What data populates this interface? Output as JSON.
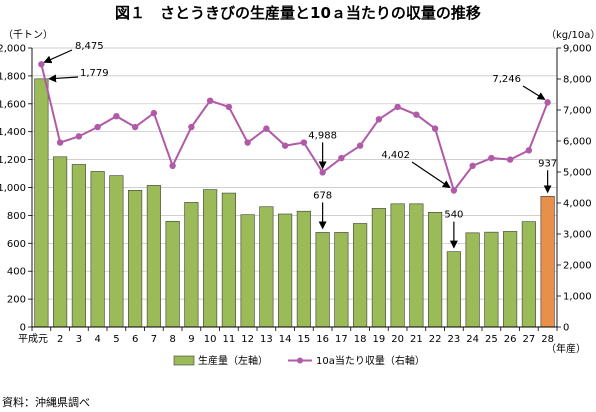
{
  "chart_data": {
    "type": "bar+line",
    "title": "図１　さとうきびの生産量と10ａ当たりの収量の推移",
    "left_unit": "（千トン）",
    "right_unit": "（kg/10a）",
    "x_unit": "（年産）",
    "categories": [
      "平成元",
      "2",
      "3",
      "4",
      "5",
      "6",
      "7",
      "8",
      "9",
      "10",
      "11",
      "12",
      "13",
      "14",
      "15",
      "16",
      "17",
      "18",
      "19",
      "20",
      "21",
      "22",
      "23",
      "24",
      "25",
      "26",
      "27",
      "28"
    ],
    "y_left": {
      "min": 0,
      "max": 2000,
      "step": 200,
      "ticks": [
        "0",
        "200",
        "400",
        "600",
        "800",
        "1,000",
        "1,200",
        "1,400",
        "1,600",
        "1,800",
        "2,000"
      ]
    },
    "y_right": {
      "min": 0,
      "max": 9000,
      "step": 1000,
      "ticks": [
        "0",
        "1,000",
        "2,000",
        "3,000",
        "4,000",
        "5,000",
        "6,000",
        "7,000",
        "8,000",
        "9,000"
      ]
    },
    "series": [
      {
        "name": "生産量（左軸）",
        "type": "bar",
        "axis": "left",
        "color": "#9bbb59",
        "highlight_color": "#e8904a",
        "values": [
          1779,
          1220,
          1165,
          1115,
          1085,
          980,
          1015,
          758,
          893,
          985,
          960,
          805,
          862,
          810,
          830,
          678,
          678,
          742,
          850,
          883,
          883,
          822,
          540,
          675,
          680,
          685,
          755,
          937
        ]
      },
      {
        "name": "10a当たり収量（右軸）",
        "type": "line",
        "axis": "right",
        "color": "#b05aa8",
        "values": [
          8475,
          5950,
          6150,
          6450,
          6800,
          6450,
          6900,
          5200,
          6450,
          7300,
          7100,
          5950,
          6400,
          5850,
          5950,
          4988,
          5450,
          5850,
          6700,
          7100,
          6850,
          6400,
          4402,
          5200,
          5450,
          5400,
          5700,
          7246
        ]
      }
    ],
    "annotations": [
      {
        "label": "8,475",
        "series": "line",
        "index": 0
      },
      {
        "label": "1,779",
        "series": "bar",
        "index": 0
      },
      {
        "label": "4,988",
        "series": "line",
        "index": 15
      },
      {
        "label": "678",
        "series": "bar",
        "index": 15
      },
      {
        "label": "4,402",
        "series": "line",
        "index": 22
      },
      {
        "label": "540",
        "series": "bar",
        "index": 22
      },
      {
        "label": "7,246",
        "series": "line",
        "index": 27
      },
      {
        "label": "937",
        "series": "bar",
        "index": 27
      }
    ]
  },
  "source": "資料：沖縄県調べ"
}
